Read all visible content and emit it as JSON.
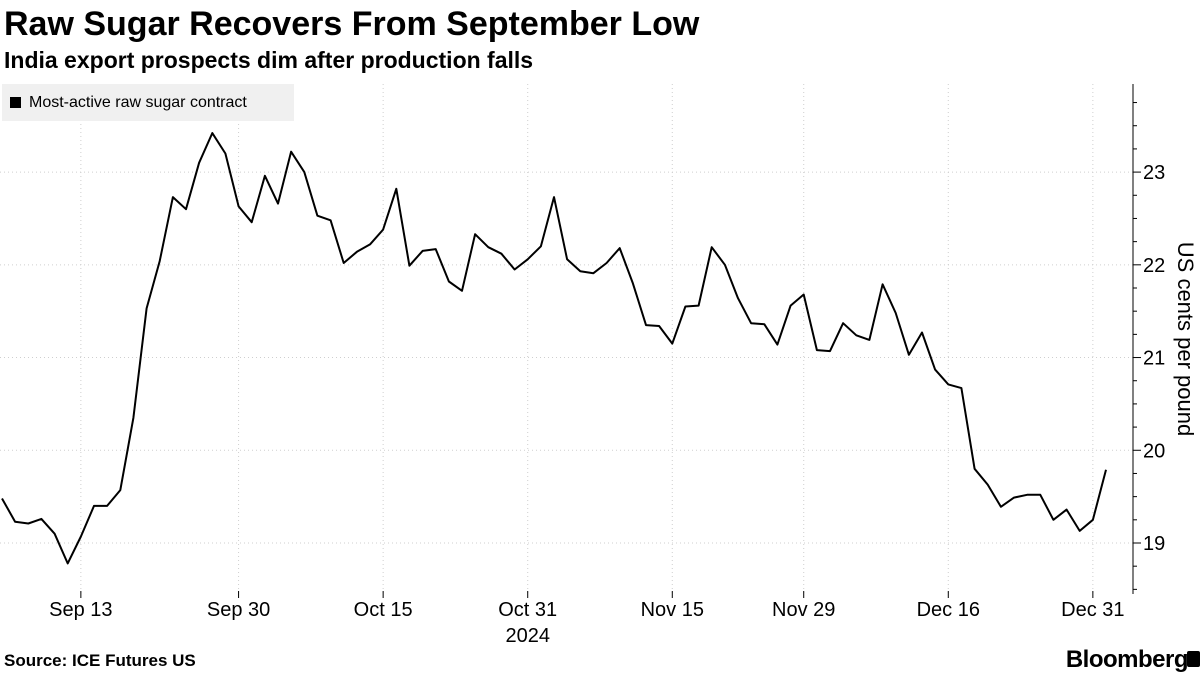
{
  "header": {
    "title": "Raw Sugar Recovers From September Low",
    "subtitle": "India export prospects dim after production falls"
  },
  "legend": {
    "label": "Most-active raw sugar contract",
    "color": "#000000"
  },
  "footer": {
    "source": "Source: ICE Futures US",
    "brand": "Bloomberg"
  },
  "chart_data": {
    "type": "line",
    "title": "Raw Sugar Recovers From September Low",
    "subtitle": "India export prospects dim after production falls",
    "ylabel": "US cents per pound",
    "year_label": "2024",
    "ylim": [
      18.45,
      23.95
    ],
    "yticks": [
      19,
      20,
      21,
      22,
      23
    ],
    "x_tick_labels": [
      "Sep 13",
      "Sep 30",
      "Oct 15",
      "Oct 31",
      "Nov 15",
      "Nov 29",
      "Dec 16",
      "Dec 31"
    ],
    "x_tick_index": [
      6,
      18,
      29,
      40,
      51,
      61,
      72,
      83
    ],
    "grid": "vertical",
    "legend_position": "top-left",
    "series": [
      {
        "name": "Most-active raw sugar contract",
        "color": "#000000",
        "values": [
          19.48,
          19.23,
          19.21,
          19.26,
          19.1,
          18.78,
          19.07,
          19.4,
          19.4,
          19.57,
          20.35,
          21.53,
          22.04,
          22.73,
          22.6,
          23.1,
          23.42,
          23.2,
          22.63,
          22.46,
          22.96,
          22.66,
          23.22,
          23.0,
          22.53,
          22.48,
          22.02,
          22.14,
          22.22,
          22.38,
          22.82,
          21.99,
          22.15,
          22.17,
          21.82,
          21.72,
          22.33,
          22.19,
          22.12,
          21.95,
          22.06,
          22.2,
          22.73,
          22.06,
          21.93,
          21.91,
          22.02,
          22.18,
          21.8,
          21.35,
          21.34,
          21.15,
          21.55,
          21.56,
          22.19,
          22.0,
          21.64,
          21.37,
          21.36,
          21.14,
          21.56,
          21.68,
          21.08,
          21.07,
          21.37,
          21.24,
          21.19,
          21.79,
          21.48,
          21.03,
          21.27,
          20.87,
          20.71,
          20.67,
          19.8,
          19.63,
          19.39,
          19.49,
          19.52,
          19.52,
          19.25,
          19.36,
          19.13,
          19.25,
          19.79
        ]
      }
    ]
  }
}
